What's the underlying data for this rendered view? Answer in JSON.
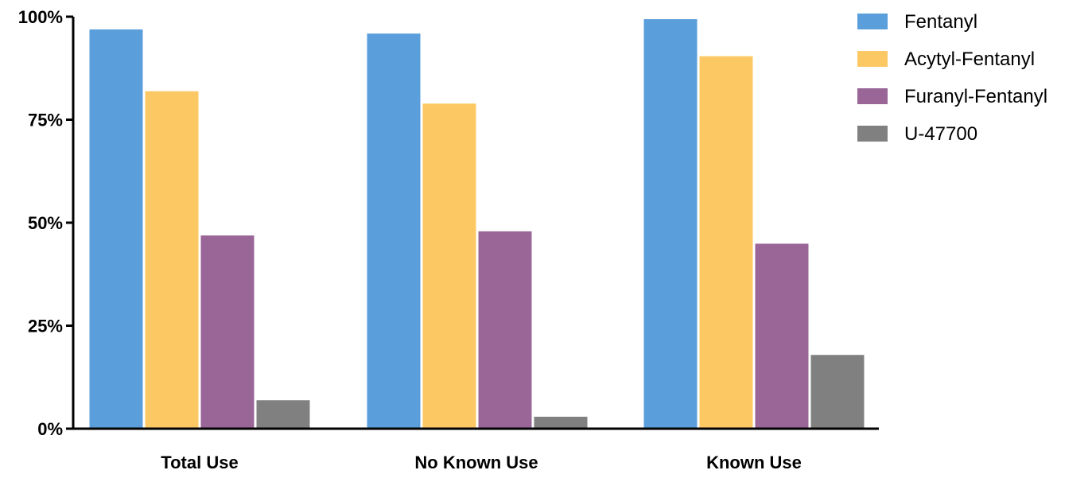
{
  "chart_data": {
    "type": "bar",
    "categories": [
      "Total Use",
      "No Known Use",
      "Known Use"
    ],
    "series": [
      {
        "name": "Fentanyl",
        "color": "#5a9fdc",
        "values": [
          97,
          96,
          99.5
        ]
      },
      {
        "name": "Acytyl-Fentanyl",
        "color": "#fcc863",
        "values": [
          82,
          79,
          90.5
        ]
      },
      {
        "name": "Furanyl-Fentanyl",
        "color": "#9a6597",
        "values": [
          47,
          48,
          45
        ]
      },
      {
        "name": "U-47700",
        "color": "#808080",
        "values": [
          7,
          3,
          18
        ]
      }
    ],
    "ylim": [
      0,
      100
    ],
    "yticks": [
      0,
      25,
      50,
      75,
      100
    ],
    "ytick_labels": [
      "0%",
      "25%",
      "50%",
      "75%",
      "100%"
    ],
    "title": "",
    "xlabel": "",
    "ylabel": "",
    "grid": false,
    "legend_position": "top-right"
  }
}
